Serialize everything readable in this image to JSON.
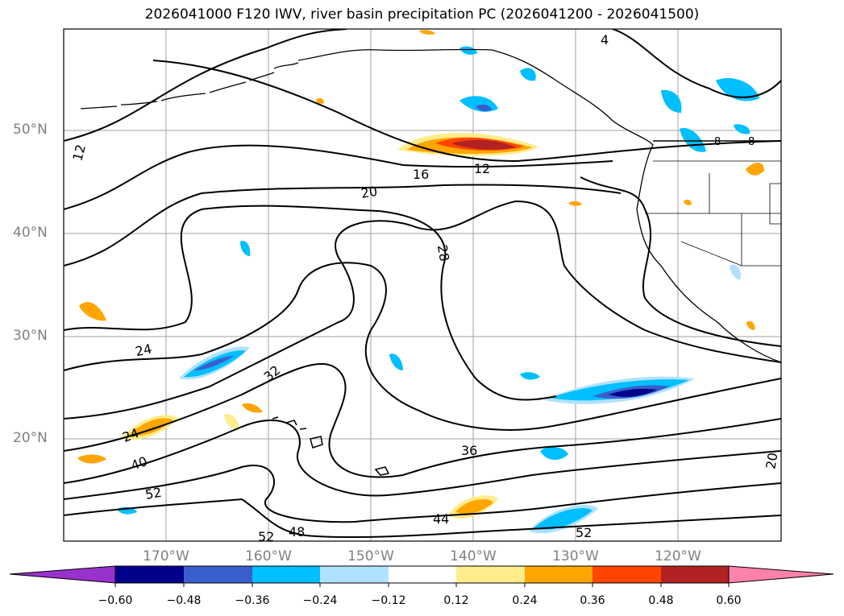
{
  "title": "2026041000 F120 IWV, river basin precipitation PC (2026041200 - 2026041500)",
  "lat_labels": [
    "50°N",
    "40°N",
    "30°N",
    "20°N"
  ],
  "lon_labels": [
    "170°W",
    "160°W",
    "150°W",
    "140°W",
    "130°W",
    "120°W"
  ],
  "contour_labels": [
    "4",
    "12",
    "12",
    "16",
    "20",
    "28",
    "24",
    "32",
    "24",
    "40",
    "52",
    "36",
    "44",
    "52",
    "48",
    "52",
    "20",
    "8",
    "8"
  ],
  "colorbar": {
    "ticks": [
      "−0.60",
      "−0.48",
      "−0.36",
      "−0.24",
      "−0.12",
      "0.12",
      "0.24",
      "0.36",
      "0.48",
      "0.60"
    ],
    "colors": [
      "#9932cc",
      "#00008b",
      "#3a5fcd",
      "#00bfff",
      "#b0e2ff",
      "#ffffff",
      "#ffec8b",
      "#ffa500",
      "#ff4500",
      "#b22222",
      "#ff82ab",
      "#ff82ab"
    ]
  }
}
